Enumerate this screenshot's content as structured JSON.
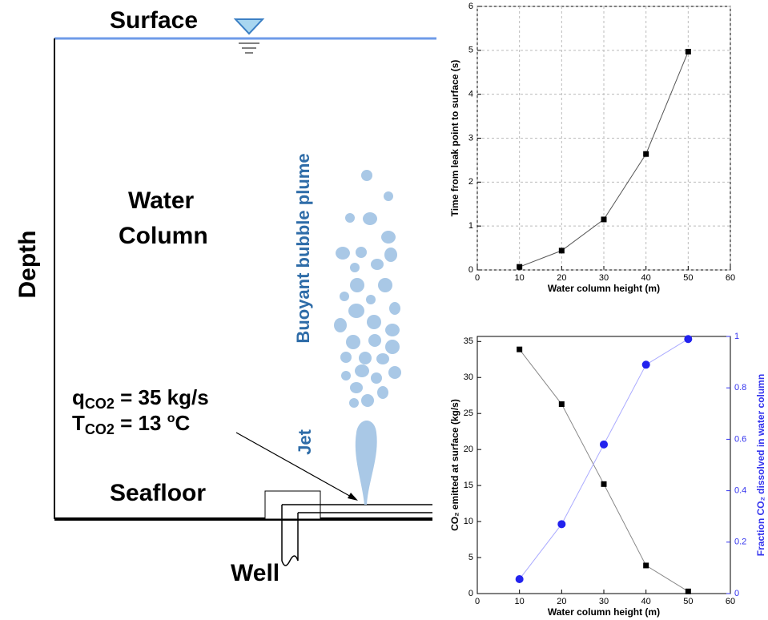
{
  "diagram": {
    "surface": "Surface",
    "water_column": [
      "Water",
      "Column"
    ],
    "depth": "Depth",
    "plume": "Buoyant bubble plume",
    "jet": "Jet",
    "seafloor": "Seafloor",
    "well": "Well",
    "flow_rate": {
      "symbol": "q",
      "subscript": "CO2",
      "text": " = 35 kg/s"
    },
    "temperature": {
      "symbol": "T",
      "subscript": "CO2",
      "text": " = 13 ",
      "superscript": "o",
      "unit": "C"
    }
  },
  "chart_data": [
    {
      "type": "line",
      "x": [
        10,
        20,
        30,
        40,
        50
      ],
      "series": [
        {
          "color": "#000000",
          "line_color": "#555555",
          "marker": "square",
          "values": [
            0.07,
            0.44,
            1.15,
            2.64,
            4.97
          ]
        }
      ],
      "xlim": [
        0,
        60
      ],
      "xticks": [
        0,
        10,
        20,
        30,
        40,
        50,
        60
      ],
      "ylim": [
        0,
        6
      ],
      "yticks": [
        0,
        1,
        2,
        3,
        4,
        5,
        6
      ],
      "grid": true,
      "xlabel": "Water column height (m)",
      "ylabel": "Time from leak point to surface (s)"
    },
    {
      "type": "line",
      "x": [
        10,
        20,
        30,
        40,
        50
      ],
      "series": [
        {
          "color": "#000000",
          "line_color": "#888888",
          "marker": "square",
          "values": [
            33.9,
            26.3,
            15.2,
            3.9,
            0.3
          ]
        },
        {
          "color": "#2222ee",
          "line_color": "#aaaaff",
          "marker": "circle",
          "axis": "y2",
          "values": [
            0.056,
            0.27,
            0.58,
            0.89,
            0.99
          ]
        }
      ],
      "xlim": [
        0,
        60
      ],
      "xticks": [
        0,
        10,
        20,
        30,
        40,
        50,
        60
      ],
      "ylim": [
        0,
        35.7
      ],
      "yticks": [
        0,
        5,
        10,
        15,
        20,
        25,
        30,
        35
      ],
      "y2lim": [
        0,
        1
      ],
      "y2ticks": [
        0,
        0.2,
        0.4,
        0.6,
        0.8,
        1
      ],
      "grid": false,
      "xlabel": "Water column height (m)",
      "ylabel": "CO₂ emitted at surface (kg/s)",
      "y2label": "Fraction CO₂ dissolved in water column",
      "y2color": "#3333ee"
    }
  ]
}
